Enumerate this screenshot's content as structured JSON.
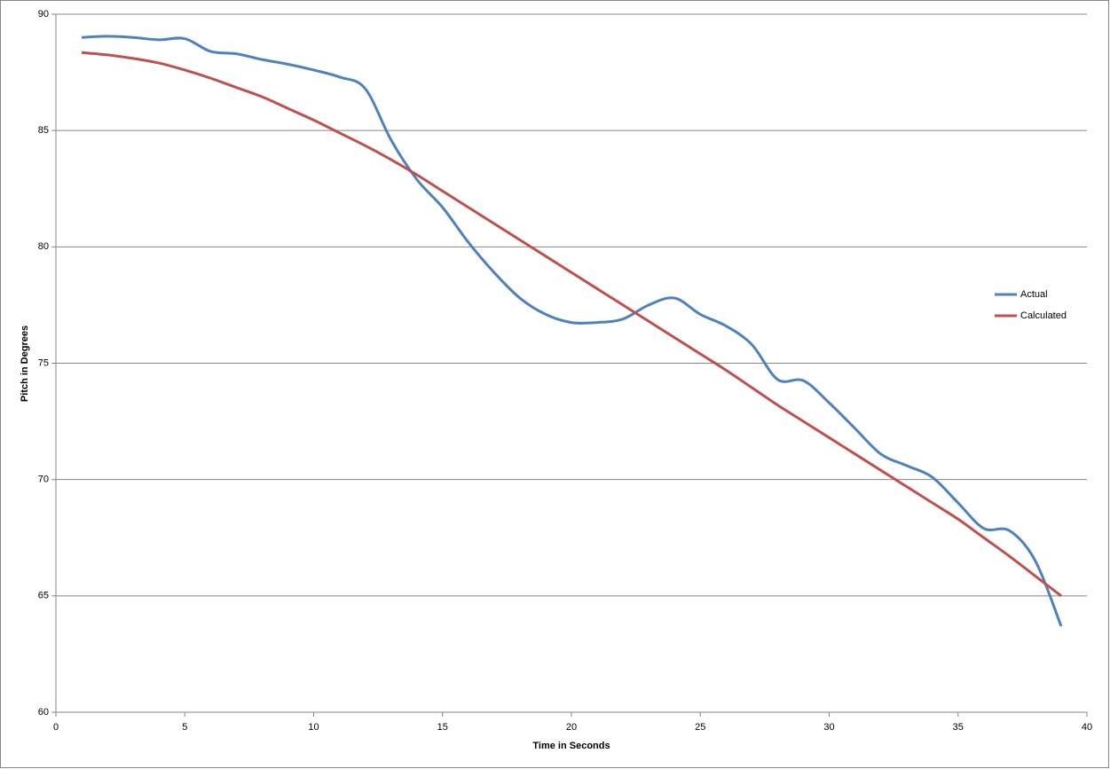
{
  "chart_data": {
    "type": "line",
    "x_label": "Time in Seconds",
    "y_label": "Pitch in Degrees",
    "x": [
      1,
      2,
      3,
      4,
      5,
      6,
      7,
      8,
      9,
      10,
      11,
      12,
      13,
      14,
      15,
      16,
      17,
      18,
      19,
      20,
      21,
      22,
      23,
      24,
      25,
      26,
      27,
      28,
      29,
      30,
      31,
      32,
      33,
      34,
      35,
      36,
      37,
      38,
      39
    ],
    "series": [
      {
        "name": "Actual",
        "color": "#4f81bd",
        "values": [
          89.0,
          89.05,
          89.0,
          88.9,
          88.95,
          88.4,
          88.3,
          88.05,
          87.85,
          87.6,
          87.3,
          86.8,
          84.6,
          82.9,
          81.7,
          80.2,
          78.9,
          77.8,
          77.1,
          76.75,
          76.75,
          76.9,
          77.5,
          77.8,
          77.1,
          76.6,
          75.8,
          74.3,
          74.25,
          73.3,
          72.2,
          71.1,
          70.6,
          70.1,
          69.0,
          67.9,
          67.8,
          66.5,
          63.7
        ]
      },
      {
        "name": "Calculated",
        "color": "#c0504d",
        "values": [
          88.35,
          88.25,
          88.1,
          87.9,
          87.6,
          87.25,
          86.85,
          86.45,
          85.95,
          85.45,
          84.9,
          84.35,
          83.75,
          83.1,
          82.4,
          81.7,
          81.0,
          80.3,
          79.6,
          78.9,
          78.2,
          77.5,
          76.8,
          76.1,
          75.4,
          74.7,
          73.95,
          73.2,
          72.5,
          71.8,
          71.1,
          70.4,
          69.7,
          69.0,
          68.3,
          67.5,
          66.7,
          65.85,
          65.0
        ]
      }
    ],
    "xlim": [
      0,
      40
    ],
    "xticks": [
      0,
      5,
      10,
      15,
      20,
      25,
      30,
      35,
      40
    ],
    "ylim": [
      60,
      90
    ],
    "yticks": [
      60,
      65,
      70,
      75,
      80,
      85,
      90
    ],
    "grid": true,
    "legend": "right"
  }
}
